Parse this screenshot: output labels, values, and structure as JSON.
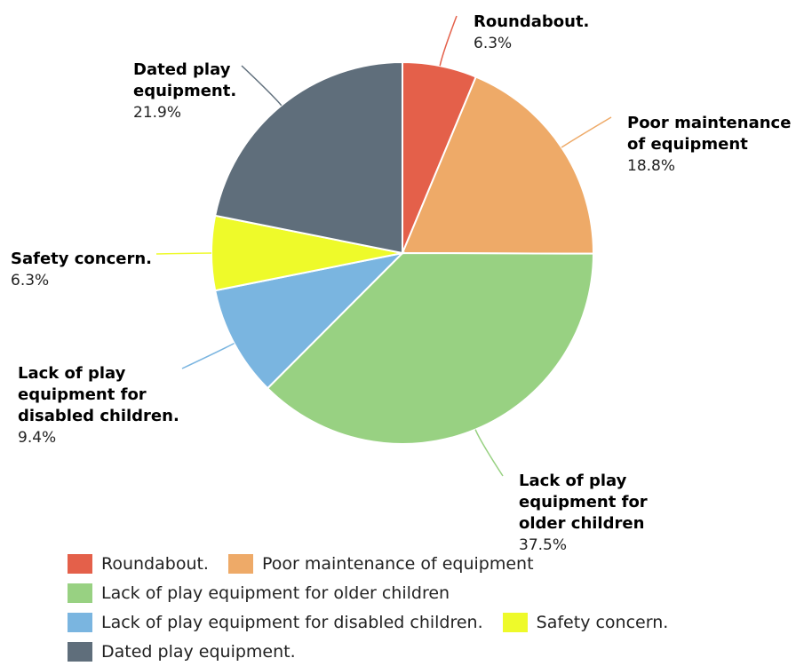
{
  "chart_data": {
    "type": "pie",
    "title": "",
    "slices": [
      {
        "label": "Roundabout.",
        "value": 6.3,
        "pct_text": "6.3%",
        "color": "#e4604a"
      },
      {
        "label": "Poor maintenance of equipment",
        "value": 18.8,
        "pct_text": "18.8%",
        "color": "#eeaa68"
      },
      {
        "label": "Lack of play equipment for older children",
        "value": 37.5,
        "pct_text": "37.5%",
        "color": "#98d182"
      },
      {
        "label": "Lack of play equipment for disabled children.",
        "value": 9.4,
        "pct_text": "9.4%",
        "color": "#7ab5e0"
      },
      {
        "label": "Safety concern.",
        "value": 6.3,
        "pct_text": "6.3%",
        "color": "#eefa2a"
      },
      {
        "label": "Dated play equipment.",
        "value": 21.9,
        "pct_text": "21.9%",
        "color": "#5f6e7b"
      }
    ],
    "data_labels": [
      {
        "lines": [
          "Roundabout."
        ],
        "pct": "6.3%"
      },
      {
        "lines": [
          "Poor maintenance",
          "of equipment"
        ],
        "pct": "18.8%"
      },
      {
        "lines": [
          "Lack of play",
          "equipment for",
          "older children"
        ],
        "pct": "37.5%"
      },
      {
        "lines": [
          "Lack of play",
          "equipment for",
          "disabled children."
        ],
        "pct": "9.4%"
      },
      {
        "lines": [
          "Safety concern."
        ],
        "pct": "6.3%"
      },
      {
        "lines": [
          "Dated play",
          "equipment."
        ],
        "pct": "21.9%"
      }
    ],
    "legend": {
      "placement": "bottom",
      "rows": [
        [
          0,
          1
        ],
        [
          2
        ],
        [
          3,
          4
        ],
        [
          5
        ]
      ]
    }
  }
}
